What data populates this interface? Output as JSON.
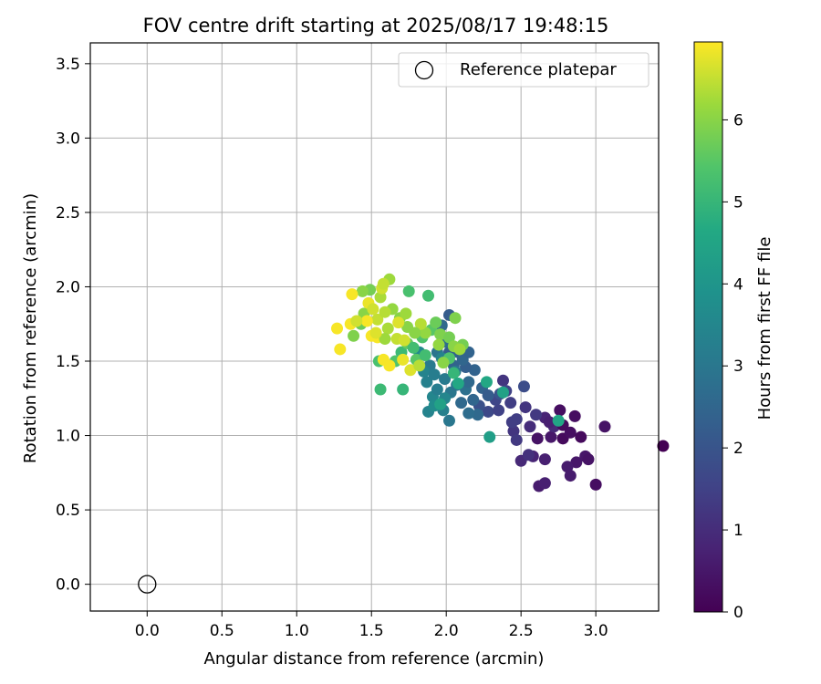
{
  "chart_data": {
    "type": "scatter",
    "title": "FOV centre drift starting at 2025/08/17 19:48:15",
    "xlabel": "Angular distance from reference (arcmin)",
    "ylabel": "Rotation from reference (arcmin)",
    "colorbar_label": "Hours from first FF file",
    "xlim": [
      -0.38,
      3.42
    ],
    "ylim": [
      -0.18,
      3.64
    ],
    "xticks": [
      "0.0",
      "0.5",
      "1.0",
      "1.5",
      "2.0",
      "2.5",
      "3.0"
    ],
    "yticks": [
      "0.0",
      "0.5",
      "1.0",
      "1.5",
      "2.0",
      "2.5",
      "3.0",
      "3.5"
    ],
    "colorbar_ticks": [
      "0",
      "1",
      "2",
      "3",
      "4",
      "5",
      "6"
    ],
    "colorbar_range": [
      0,
      6.95
    ],
    "colormap": "viridis",
    "grid": true,
    "legend_position": "upper right",
    "legend": [
      {
        "label": "Reference platepar",
        "marker": "open-circle"
      }
    ],
    "reference_point": {
      "x": 0.0,
      "y": 0.0
    },
    "series": [
      {
        "comment_fields": [
          "x",
          "y",
          "hours"
        ],
        "points": [
          [
            3.45,
            0.93,
            0.0
          ],
          [
            2.62,
            0.66,
            0.6
          ],
          [
            2.66,
            0.84,
            0.7
          ],
          [
            2.7,
            0.99,
            0.5
          ],
          [
            2.83,
            0.73,
            0.6
          ],
          [
            2.87,
            0.82,
            0.5
          ],
          [
            2.93,
            0.86,
            0.5
          ],
          [
            3.0,
            0.67,
            0.3
          ],
          [
            3.06,
            1.06,
            0.4
          ],
          [
            2.86,
            1.13,
            0.3
          ],
          [
            2.78,
            0.98,
            0.2
          ],
          [
            2.76,
            1.17,
            0.3
          ],
          [
            2.61,
            0.98,
            0.4
          ],
          [
            2.58,
            0.86,
            0.8
          ],
          [
            2.5,
            0.83,
            0.9
          ],
          [
            2.45,
            1.03,
            1.2
          ],
          [
            2.56,
            1.06,
            1.0
          ],
          [
            2.66,
            1.12,
            0.8
          ],
          [
            2.72,
            1.06,
            0.9
          ],
          [
            2.81,
            0.79,
            0.6
          ],
          [
            2.95,
            0.84,
            0.4
          ],
          [
            2.83,
            1.02,
            0.3
          ],
          [
            2.9,
            0.99,
            0.2
          ],
          [
            2.53,
            1.19,
            1.2
          ],
          [
            2.6,
            1.14,
            1.3
          ],
          [
            2.47,
            1.11,
            1.4
          ],
          [
            2.38,
            1.37,
            1.2
          ],
          [
            2.33,
            1.24,
            1.6
          ],
          [
            2.4,
            1.3,
            1.5
          ],
          [
            2.28,
            1.16,
            1.7
          ],
          [
            2.22,
            1.2,
            1.9
          ],
          [
            2.52,
            1.33,
            1.8
          ],
          [
            2.35,
            1.17,
            1.5
          ],
          [
            2.43,
            1.22,
            1.4
          ],
          [
            2.66,
            0.68,
            0.7
          ],
          [
            2.55,
            0.87,
            1.1
          ],
          [
            2.78,
            1.07,
            0.2
          ],
          [
            2.69,
            1.09,
            0.7
          ],
          [
            2.47,
            0.97,
            1.3
          ],
          [
            2.21,
            1.14,
            2.6
          ],
          [
            2.18,
            1.24,
            2.5
          ],
          [
            2.1,
            1.22,
            2.6
          ],
          [
            2.02,
            1.1,
            3.0
          ],
          [
            1.98,
            1.17,
            3.3
          ],
          [
            1.88,
            1.16,
            3.4
          ],
          [
            1.91,
            1.26,
            3.5
          ],
          [
            1.94,
            1.31,
            3.2
          ],
          [
            1.99,
            1.38,
            3.1
          ],
          [
            2.03,
            1.29,
            3.0
          ],
          [
            2.07,
            1.34,
            2.9
          ],
          [
            2.13,
            1.31,
            2.8
          ],
          [
            2.15,
            1.36,
            2.6
          ],
          [
            2.19,
            1.44,
            2.4
          ],
          [
            2.24,
            1.32,
            2.4
          ],
          [
            2.28,
            1.27,
            2.2
          ],
          [
            2.36,
            1.28,
            2.0
          ],
          [
            2.13,
            1.46,
            2.3
          ],
          [
            2.05,
            1.47,
            2.4
          ],
          [
            2.02,
            1.56,
            2.2
          ],
          [
            2.08,
            1.56,
            2.4
          ],
          [
            2.11,
            1.51,
            2.5
          ],
          [
            2.15,
            1.56,
            2.4
          ],
          [
            2.02,
            1.81,
            2.2
          ],
          [
            1.97,
            1.74,
            2.6
          ],
          [
            1.99,
            1.63,
            2.7
          ],
          [
            1.94,
            1.56,
            2.9
          ],
          [
            1.89,
            1.47,
            3.1
          ],
          [
            1.85,
            1.43,
            3.4
          ],
          [
            1.82,
            1.56,
            3.6
          ],
          [
            1.87,
            1.36,
            3.3
          ],
          [
            1.92,
            1.41,
            3.2
          ],
          [
            2.06,
            1.43,
            3.0
          ],
          [
            1.97,
            1.52,
            3.4
          ],
          [
            1.99,
            1.25,
            3.5
          ],
          [
            1.92,
            1.2,
            3.7
          ],
          [
            2.29,
            0.99,
            4.3
          ],
          [
            2.27,
            1.36,
            4.6
          ],
          [
            2.38,
            1.29,
            4.4
          ],
          [
            1.96,
            1.21,
            4.4
          ],
          [
            1.88,
            1.94,
            5.2
          ],
          [
            1.75,
            1.97,
            5.3
          ],
          [
            1.71,
            1.31,
            5.0
          ],
          [
            1.56,
            1.31,
            5.1
          ],
          [
            1.55,
            1.5,
            5.3
          ],
          [
            1.66,
            1.5,
            5.4
          ],
          [
            1.7,
            1.56,
            5.1
          ],
          [
            1.74,
            1.62,
            5.6
          ],
          [
            1.78,
            1.59,
            5.2
          ],
          [
            1.84,
            1.66,
            5.4
          ],
          [
            1.8,
            1.51,
            5.5
          ],
          [
            1.86,
            1.54,
            5.2
          ],
          [
            2.02,
            1.52,
            5.4
          ],
          [
            2.05,
            1.42,
            5.0
          ],
          [
            2.08,
            1.35,
            4.6
          ],
          [
            2.11,
            1.61,
            5.8
          ],
          [
            2.06,
            1.79,
            5.9
          ],
          [
            1.9,
            1.71,
            5.5
          ],
          [
            1.93,
            1.76,
            5.7
          ],
          [
            1.96,
            1.68,
            5.9
          ],
          [
            2.02,
            1.66,
            5.8
          ],
          [
            2.05,
            1.6,
            6.0
          ],
          [
            2.09,
            1.58,
            6.2
          ],
          [
            1.95,
            1.61,
            6.1
          ],
          [
            1.98,
            1.49,
            6.0
          ],
          [
            1.86,
            1.69,
            6.1
          ],
          [
            1.83,
            1.75,
            6.4
          ],
          [
            1.79,
            1.69,
            6.0
          ],
          [
            1.74,
            1.73,
            6.0
          ],
          [
            1.69,
            1.79,
            6.0
          ],
          [
            1.64,
            1.85,
            6.1
          ],
          [
            1.62,
            2.05,
            6.2
          ],
          [
            1.56,
            1.93,
            6.3
          ],
          [
            1.49,
            1.98,
            5.8
          ],
          [
            1.44,
            1.97,
            6.0
          ],
          [
            1.43,
            1.75,
            5.7
          ],
          [
            1.45,
            1.82,
            6.0
          ],
          [
            1.38,
            1.67,
            5.9
          ],
          [
            1.48,
            1.89,
            6.8
          ],
          [
            1.51,
            1.85,
            6.6
          ],
          [
            1.54,
            1.78,
            6.5
          ],
          [
            1.59,
            1.83,
            6.4
          ],
          [
            1.61,
            1.72,
            6.3
          ],
          [
            1.67,
            1.65,
            6.5
          ],
          [
            1.72,
            1.64,
            6.6
          ],
          [
            1.76,
            1.44,
            6.7
          ],
          [
            1.71,
            1.51,
            6.8
          ],
          [
            1.58,
            1.51,
            6.9
          ],
          [
            1.62,
            1.47,
            6.9
          ],
          [
            1.54,
            1.66,
            6.9
          ],
          [
            1.5,
            1.67,
            6.9
          ],
          [
            1.47,
            1.77,
            6.9
          ],
          [
            1.37,
            1.95,
            6.9
          ],
          [
            1.36,
            1.75,
            6.9
          ],
          [
            1.27,
            1.72,
            6.9
          ],
          [
            1.29,
            1.58,
            6.9
          ],
          [
            1.4,
            1.77,
            6.6
          ],
          [
            1.57,
            1.99,
            6.6
          ],
          [
            1.58,
            2.02,
            6.5
          ],
          [
            1.68,
            1.76,
            6.7
          ],
          [
            1.73,
            1.82,
            6.2
          ],
          [
            1.82,
            1.47,
            6.4
          ],
          [
            1.59,
            1.65,
            6.2
          ],
          [
            1.53,
            1.69,
            6.7
          ],
          [
            2.75,
            1.1,
            4.5
          ],
          [
            2.44,
            1.09,
            1.4
          ],
          [
            2.15,
            1.15,
            2.7
          ]
        ]
      }
    ]
  }
}
